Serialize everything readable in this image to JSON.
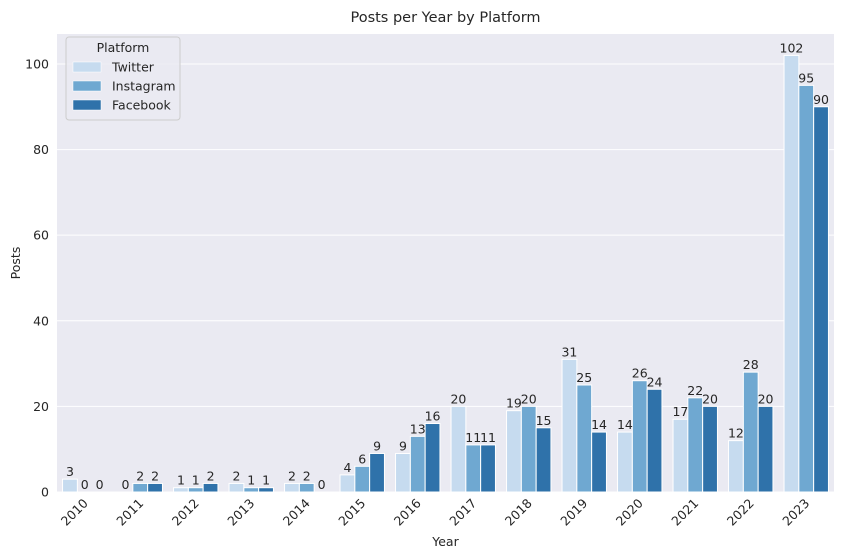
{
  "chart_data": {
    "type": "bar",
    "title": "Posts per Year by Platform",
    "xlabel": "Year",
    "ylabel": "Posts",
    "ylim": [
      0,
      107
    ],
    "yticks": [
      0,
      20,
      40,
      60,
      80,
      100
    ],
    "grid": true,
    "legend": {
      "title": "Platform",
      "placement": "top-left"
    },
    "categories": [
      "2010",
      "2011",
      "2012",
      "2013",
      "2014",
      "2015",
      "2016",
      "2017",
      "2018",
      "2019",
      "2020",
      "2021",
      "2022",
      "2023"
    ],
    "series": [
      {
        "name": "Twitter",
        "color": "#c6dbef",
        "values": [
          3,
          0,
          1,
          2,
          2,
          4,
          9,
          20,
          19,
          31,
          14,
          17,
          12,
          102
        ]
      },
      {
        "name": "Instagram",
        "color": "#6fa8d1",
        "values": [
          0,
          2,
          1,
          1,
          2,
          6,
          13,
          11,
          20,
          25,
          26,
          22,
          28,
          95
        ]
      },
      {
        "name": "Facebook",
        "color": "#2f72aa",
        "values": [
          0,
          2,
          2,
          1,
          0,
          9,
          16,
          11,
          15,
          14,
          24,
          20,
          20,
          90
        ]
      }
    ],
    "colors": {
      "plot_background": "#eaeaf2",
      "grid": "#ffffff"
    }
  }
}
